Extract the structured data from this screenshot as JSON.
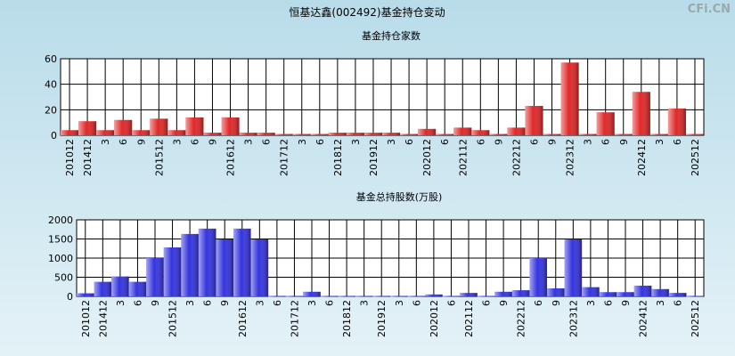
{
  "title": "恒基达鑫(002492)基金持仓变动",
  "watermark": "CFi.CN",
  "chart_data": [
    {
      "type": "bar",
      "title": "基金持仓家数",
      "color": "#e02828",
      "grid": true,
      "categories": [
        "201012",
        "201412",
        "3",
        "6",
        "9",
        "201512",
        "3",
        "6",
        "9",
        "201612",
        "3",
        "6",
        "201712",
        "3",
        "6",
        "201812",
        "3",
        "201912",
        "3",
        "6",
        "202012",
        "6",
        "202112",
        "6",
        "9",
        "202212",
        "6",
        "9",
        "202312",
        "3",
        "6",
        "9",
        "202412",
        "3",
        "6",
        "202512"
      ],
      "values": [
        4,
        11,
        4,
        12,
        4,
        13,
        4,
        14,
        2,
        14,
        2,
        2,
        1,
        1,
        1,
        2,
        2,
        2,
        2,
        1,
        5,
        1,
        6,
        4,
        1,
        6,
        23,
        1,
        57,
        1,
        18,
        1,
        34,
        1,
        21,
        1
      ],
      "ylim": [
        0,
        60
      ],
      "yticks": [
        0,
        20,
        40,
        60
      ]
    },
    {
      "type": "bar",
      "title": "基金总持股数(万股)",
      "color": "#3434e0",
      "grid": true,
      "categories": [
        "201012",
        "201412",
        "3",
        "6",
        "9",
        "201512",
        "3",
        "6",
        "9",
        "201612",
        "3",
        "6",
        "201712",
        "3",
        "6",
        "201812",
        "3",
        "201912",
        "3",
        "6",
        "202012",
        "6",
        "202112",
        "6",
        "9",
        "202212",
        "6",
        "9",
        "202312",
        "3",
        "6",
        "9",
        "202412",
        "3",
        "6",
        "202512"
      ],
      "values": [
        80,
        380,
        520,
        380,
        1000,
        1280,
        1630,
        1770,
        1490,
        1770,
        1490,
        10,
        10,
        120,
        10,
        10,
        10,
        10,
        10,
        10,
        50,
        10,
        90,
        10,
        120,
        160,
        1000,
        210,
        1490,
        240,
        110,
        110,
        280,
        190,
        90,
        10
      ],
      "ylim": [
        0,
        2000
      ],
      "yticks": [
        0,
        500,
        1000,
        1500,
        2000
      ]
    }
  ]
}
